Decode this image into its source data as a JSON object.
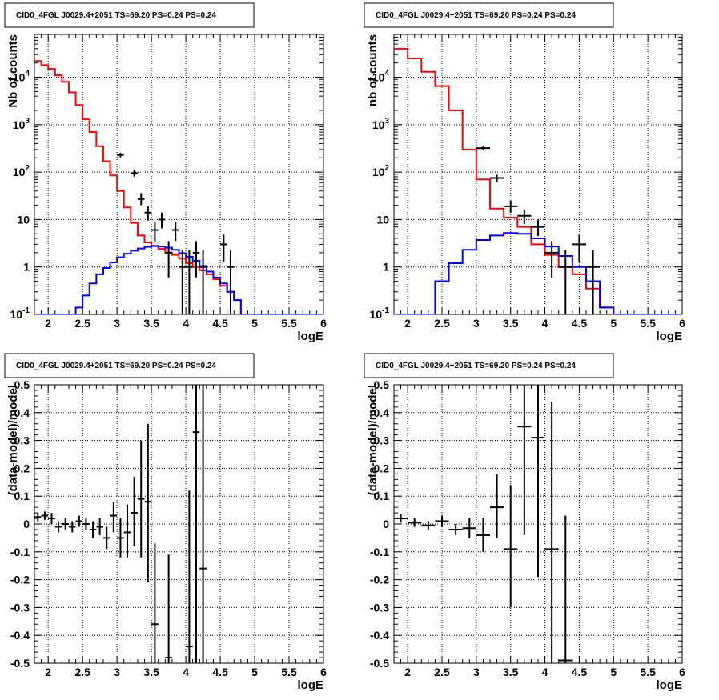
{
  "chart_data": [
    {
      "type": "step",
      "title": "CID0_4FGL J0029.4+2051 TS=69.20 PS=0.24 PS=0.24",
      "xlabel": "logE",
      "ylabel": "Nb of counts",
      "xlim": [
        1.8,
        6.0
      ],
      "ylim": [
        0.1,
        80000
      ],
      "yscale": "log",
      "grid": true,
      "x_ticks": [
        "2",
        "2.5",
        "3",
        "3.5",
        "4",
        "4.5",
        "5",
        "5.5",
        "6"
      ],
      "y_ticks": [
        "10^-1",
        "1",
        "10",
        "10^2",
        "10^3",
        "10^4"
      ],
      "x_edges": [
        1.8,
        1.9,
        2.0,
        2.1,
        2.2,
        2.3,
        2.4,
        2.5,
        2.6,
        2.7,
        2.8,
        2.9,
        3.0,
        3.1,
        3.2,
        3.3,
        3.4,
        3.5,
        3.6,
        3.7,
        3.8,
        3.9,
        4.0,
        4.1,
        4.2,
        4.3,
        4.4,
        4.5,
        4.6,
        4.7,
        4.8,
        4.9,
        5.0,
        5.1,
        5.2,
        5.3,
        5.4,
        5.5,
        5.6,
        5.7,
        5.8,
        5.9,
        6.0
      ],
      "series": [
        {
          "color": "#ff0000",
          "values": [
            22000,
            18000,
            15000,
            11000,
            8000,
            4800,
            2600,
            1300,
            700,
            350,
            170,
            85,
            40,
            18,
            8.5,
            4.6,
            3.3,
            2.8,
            2.4,
            2.0,
            1.8,
            1.5,
            1.2,
            1.0,
            0.85,
            0.7,
            0.55,
            0.4,
            0.3,
            0.2,
            0.1,
            0.1,
            0.1,
            0.1,
            0.1,
            0.1,
            0.1,
            0.1,
            0.1,
            0.1,
            0.1,
            0.1
          ]
        },
        {
          "color": "#0000ff",
          "values": [
            0.1,
            0.1,
            0.1,
            0.1,
            0.1,
            0.1,
            0.14,
            0.25,
            0.45,
            0.7,
            0.95,
            1.25,
            1.6,
            1.9,
            2.2,
            2.45,
            2.65,
            2.75,
            2.7,
            2.55,
            2.3,
            1.95,
            1.65,
            1.35,
            1.05,
            0.8,
            0.6,
            0.45,
            0.3,
            0.2,
            0.1,
            0.1,
            0.1,
            0.1,
            0.1,
            0.1,
            0.1,
            0.1,
            0.1,
            0.1,
            0.1,
            0.1
          ]
        }
      ],
      "points": [
        {
          "x": 3.05,
          "y": 230,
          "lo": 205,
          "hi": 255
        },
        {
          "x": 3.25,
          "y": 95,
          "lo": 80,
          "hi": 112
        },
        {
          "x": 3.35,
          "y": 27,
          "lo": 20,
          "hi": 36
        },
        {
          "x": 3.45,
          "y": 14,
          "lo": 9.5,
          "hi": 19
        },
        {
          "x": 3.55,
          "y": 6,
          "lo": 3.5,
          "hi": 9
        },
        {
          "x": 3.65,
          "y": 10,
          "lo": 6.5,
          "hi": 14
        },
        {
          "x": 3.75,
          "y": 2,
          "lo": 0.6,
          "hi": 3.5
        },
        {
          "x": 3.85,
          "y": 6,
          "lo": 3.5,
          "hi": 9
        },
        {
          "x": 3.95,
          "y": 1,
          "lo": 0.1,
          "hi": 2.3
        },
        {
          "x": 4.05,
          "y": 1,
          "lo": 0.1,
          "hi": 2.3
        },
        {
          "x": 4.15,
          "y": 2,
          "lo": 0.6,
          "hi": 3.5
        },
        {
          "x": 4.25,
          "y": 1,
          "lo": 0.1,
          "hi": 2.3
        },
        {
          "x": 4.55,
          "y": 3,
          "lo": 1.3,
          "hi": 4.8
        },
        {
          "x": 4.65,
          "y": 1,
          "lo": 0.1,
          "hi": 2.3
        }
      ]
    },
    {
      "type": "step",
      "title": "CID0_4FGL J0029.4+2051 TS=69.20 PS=0.24 PS=0.24",
      "xlabel": "logE",
      "ylabel": "nb of counts",
      "xlim": [
        1.8,
        6.0
      ],
      "ylim": [
        0.1,
        80000
      ],
      "yscale": "log",
      "grid": true,
      "x_ticks": [
        "2",
        "2.5",
        "3",
        "3.5",
        "4",
        "4.5",
        "5",
        "5.5",
        "6"
      ],
      "y_ticks": [
        "10^-1",
        "1",
        "10",
        "10^2",
        "10^3",
        "10^4"
      ],
      "x_edges": [
        1.8,
        2.0,
        2.2,
        2.4,
        2.6,
        2.8,
        3.0,
        3.2,
        3.4,
        3.6,
        3.8,
        4.0,
        4.2,
        4.4,
        4.6,
        4.8,
        5.0,
        5.2,
        5.4,
        5.6,
        5.8,
        6.0
      ],
      "series": [
        {
          "color": "#ff0000",
          "values": [
            40000,
            25000,
            13000,
            6500,
            2000,
            300,
            70,
            17,
            11,
            7,
            3,
            1.8,
            1.0,
            0.7,
            0.35,
            0.14,
            0.1,
            0.1,
            0.1,
            0.1,
            0.1
          ]
        },
        {
          "color": "#0000ff",
          "values": [
            0.1,
            0.1,
            0.1,
            0.5,
            1.2,
            2.3,
            3.7,
            4.6,
            5.2,
            5.0,
            4.0,
            2.7,
            1.7,
            1.0,
            0.5,
            0.14,
            0.1,
            0.1,
            0.1,
            0.1,
            0.1
          ]
        }
      ],
      "points": [
        {
          "x": 3.1,
          "y": 320,
          "lo": 290,
          "hi": 350
        },
        {
          "x": 3.3,
          "y": 75,
          "lo": 62,
          "hi": 88
        },
        {
          "x": 3.5,
          "y": 19,
          "lo": 14,
          "hi": 25
        },
        {
          "x": 3.7,
          "y": 12,
          "lo": 8,
          "hi": 16
        },
        {
          "x": 3.9,
          "y": 7,
          "lo": 4.5,
          "hi": 10
        },
        {
          "x": 4.1,
          "y": 2,
          "lo": 0.6,
          "hi": 3.5
        },
        {
          "x": 4.3,
          "y": 1,
          "lo": 0.1,
          "hi": 2.3
        },
        {
          "x": 4.5,
          "y": 3,
          "lo": 1.3,
          "hi": 4.8
        },
        {
          "x": 4.7,
          "y": 1,
          "lo": 0.1,
          "hi": 2.3
        }
      ]
    },
    {
      "type": "scatter",
      "title": "CID0_4FGL J0029.4+2051 TS=69.20 PS=0.24 PS=0.24",
      "xlabel": "logE",
      "ylabel": "(data-model)/model",
      "xlim": [
        1.8,
        6.0
      ],
      "ylim": [
        -0.5,
        0.5
      ],
      "grid": true,
      "xerr": 0.05,
      "x_ticks": [
        "2",
        "2.5",
        "3",
        "3.5",
        "4",
        "4.5",
        "5",
        "5.5",
        "6"
      ],
      "y_ticks": [
        "-0.5",
        "-0.4",
        "-0.3",
        "-0.2",
        "-0.1",
        "0",
        "0.1",
        "0.2",
        "0.3",
        "0.4",
        "0.5"
      ],
      "points": [
        {
          "x": 1.85,
          "y": 0.025,
          "lo": 0.01,
          "hi": 0.04
        },
        {
          "x": 1.95,
          "y": 0.03,
          "lo": 0.015,
          "hi": 0.045
        },
        {
          "x": 2.05,
          "y": 0.02,
          "lo": 0.0,
          "hi": 0.04
        },
        {
          "x": 2.15,
          "y": -0.01,
          "lo": -0.03,
          "hi": 0.01
        },
        {
          "x": 2.25,
          "y": 0.0,
          "lo": -0.02,
          "hi": 0.02
        },
        {
          "x": 2.35,
          "y": -0.01,
          "lo": -0.03,
          "hi": 0.01
        },
        {
          "x": 2.45,
          "y": 0.01,
          "lo": -0.01,
          "hi": 0.03
        },
        {
          "x": 2.55,
          "y": 0.0,
          "lo": -0.02,
          "hi": 0.02
        },
        {
          "x": 2.65,
          "y": -0.02,
          "lo": -0.05,
          "hi": 0.01
        },
        {
          "x": 2.75,
          "y": -0.01,
          "lo": -0.04,
          "hi": 0.02
        },
        {
          "x": 2.85,
          "y": -0.05,
          "lo": -0.09,
          "hi": -0.01
        },
        {
          "x": 2.95,
          "y": 0.03,
          "lo": -0.03,
          "hi": 0.08
        },
        {
          "x": 3.05,
          "y": -0.05,
          "lo": -0.12,
          "hi": 0.02
        },
        {
          "x": 3.15,
          "y": -0.03,
          "lo": -0.12,
          "hi": 0.07
        },
        {
          "x": 3.25,
          "y": 0.04,
          "lo": -0.08,
          "hi": 0.17
        },
        {
          "x": 3.35,
          "y": 0.09,
          "lo": -0.12,
          "hi": 0.3
        },
        {
          "x": 3.45,
          "y": 0.08,
          "lo": -0.21,
          "hi": 0.36
        },
        {
          "x": 3.55,
          "y": -0.36,
          "lo": -0.5,
          "hi": -0.07
        },
        {
          "x": 3.75,
          "y": -0.48,
          "lo": -0.5,
          "hi": -0.11
        },
        {
          "x": 4.05,
          "y": -0.44,
          "lo": -0.5,
          "hi": 0.12
        },
        {
          "x": 4.15,
          "y": 0.33,
          "lo": -0.5,
          "hi": 0.5
        },
        {
          "x": 4.25,
          "y": -0.16,
          "lo": -0.5,
          "hi": 0.5
        }
      ]
    },
    {
      "type": "scatter",
      "title": "CID0_4FGL J0029.4+2051 TS=69.20 PS=0.24 PS=0.24",
      "xlabel": "logE",
      "ylabel": "(data-model)/model",
      "xlim": [
        1.8,
        6.0
      ],
      "ylim": [
        -0.5,
        0.5
      ],
      "grid": true,
      "xerr": 0.1,
      "x_ticks": [
        "2",
        "2.5",
        "3",
        "3.5",
        "4",
        "4.5",
        "5",
        "5.5",
        "6"
      ],
      "y_ticks": [
        "-0.5",
        "-0.4",
        "-0.3",
        "-0.2",
        "-0.1",
        "0",
        "0.1",
        "0.2",
        "0.3",
        "0.4",
        "0.5"
      ],
      "points": [
        {
          "x": 1.9,
          "y": 0.02,
          "lo": 0.005,
          "hi": 0.035
        },
        {
          "x": 2.1,
          "y": 0.005,
          "lo": -0.01,
          "hi": 0.02
        },
        {
          "x": 2.3,
          "y": -0.005,
          "lo": -0.02,
          "hi": 0.01
        },
        {
          "x": 2.5,
          "y": 0.01,
          "lo": -0.01,
          "hi": 0.03
        },
        {
          "x": 2.7,
          "y": -0.02,
          "lo": -0.04,
          "hi": 0.0
        },
        {
          "x": 2.9,
          "y": -0.015,
          "lo": -0.05,
          "hi": 0.02
        },
        {
          "x": 3.1,
          "y": -0.04,
          "lo": -0.1,
          "hi": 0.02
        },
        {
          "x": 3.3,
          "y": 0.06,
          "lo": -0.05,
          "hi": 0.18
        },
        {
          "x": 3.5,
          "y": -0.09,
          "lo": -0.3,
          "hi": 0.14
        },
        {
          "x": 3.7,
          "y": 0.35,
          "lo": -0.04,
          "hi": 0.5
        },
        {
          "x": 3.9,
          "y": 0.31,
          "lo": -0.19,
          "hi": 0.5
        },
        {
          "x": 4.1,
          "y": -0.09,
          "lo": -0.5,
          "hi": 0.44
        },
        {
          "x": 4.3,
          "y": -0.49,
          "lo": -0.5,
          "hi": 0.03
        }
      ]
    }
  ]
}
